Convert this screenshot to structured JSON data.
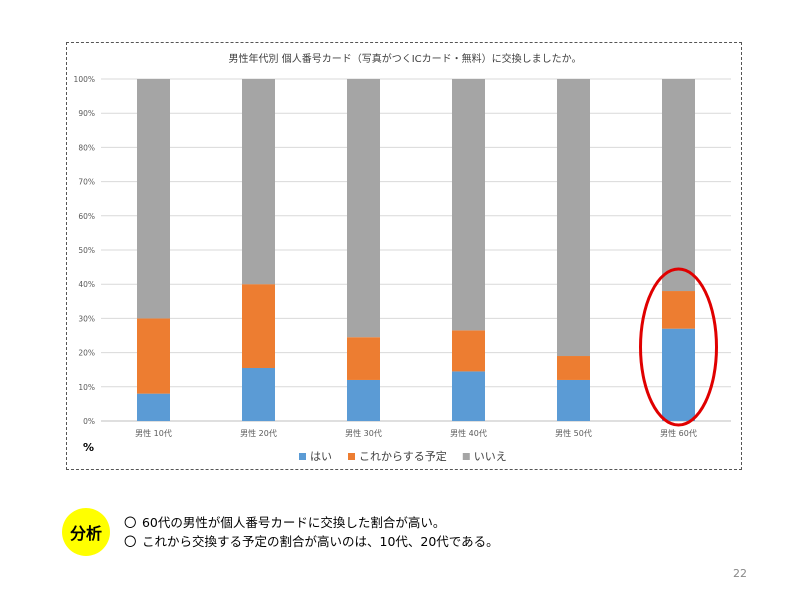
{
  "chart_data": {
    "type": "bar",
    "stacked": true,
    "percent": true,
    "title": "男性年代別 個人番号カード（写真がつくICカード・無料）に交換しましたか。",
    "categories": [
      "男性 10代",
      "男性 20代",
      "男性 30代",
      "男性 40代",
      "男性 50代",
      "男性 60代"
    ],
    "series": [
      {
        "name": "はい",
        "color": "#5b9bd5",
        "values": [
          8,
          15.5,
          12,
          14.5,
          12,
          27
        ]
      },
      {
        "name": "これからする予定",
        "color": "#ed7d31",
        "values": [
          22,
          24.5,
          12.5,
          12,
          7,
          11
        ]
      },
      {
        "name": "いいえ",
        "color": "#a5a5a5",
        "values": [
          70,
          60,
          75.5,
          73.5,
          81,
          62
        ]
      }
    ],
    "ylim": [
      0,
      100
    ],
    "yticks": [
      "0%",
      "10%",
      "20%",
      "30%",
      "40%",
      "50%",
      "60%",
      "70%",
      "80%",
      "90%",
      "100%"
    ],
    "y_unit_label": "%",
    "grid": true,
    "legend_position": "bottom",
    "highlight": {
      "category": "男性 60代",
      "shape": "ellipse",
      "color": "#e00000"
    }
  },
  "analysis": {
    "badge": "分析",
    "bullet": "〇",
    "lines": [
      "60代の男性が個人番号カードに交換した割合が高い。",
      "これから交換する予定の割合が高いのは、10代、20代である。"
    ]
  },
  "page_number": "22"
}
